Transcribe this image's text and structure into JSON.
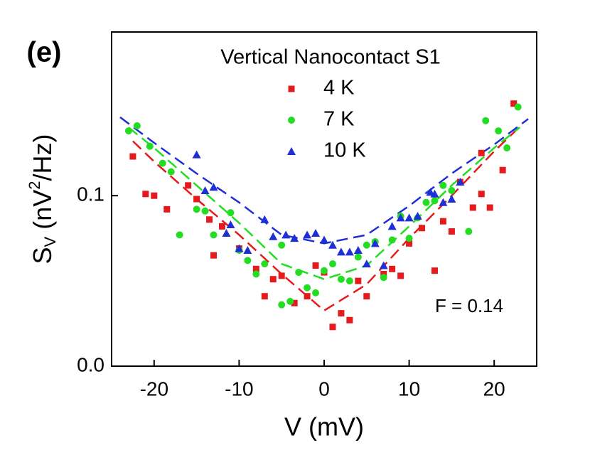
{
  "chart_data": {
    "type": "scatter",
    "panel_label": "(e)",
    "title": "Vertical Nanocontact S1",
    "annotation": "F = 0.14",
    "x_label": "V (mV)",
    "y_label": {
      "base": "S",
      "sub": "V",
      "mid": " (nV",
      "sup": "2",
      "end": "/Hz)"
    },
    "xlim": [
      -25,
      25
    ],
    "ylim": [
      0,
      0.196
    ],
    "xticks": [
      -20,
      -10,
      0,
      10,
      20
    ],
    "yticks": [
      {
        "value": 0,
        "label": "0.0"
      },
      0.1
    ],
    "series": [
      {
        "name": "4 K",
        "color": "#e41a1c",
        "marker": "square",
        "x": [
          -22.5,
          -21,
          -20,
          -18.5,
          -16,
          -15,
          -13.5,
          -12,
          -13,
          -10,
          -8,
          -7,
          -6,
          -5,
          -3.5,
          -2,
          -1,
          0,
          1,
          2,
          3,
          4,
          5,
          7,
          8,
          9,
          10,
          11.5,
          13,
          14,
          15,
          16,
          17.5,
          18.5,
          19.5,
          18.5,
          21,
          22.3
        ],
        "values": [
          0.123,
          0.101,
          0.1,
          0.092,
          0.106,
          0.098,
          0.086,
          0.082,
          0.065,
          0.069,
          0.057,
          0.041,
          0.051,
          0.053,
          0.037,
          0.041,
          0.059,
          0.055,
          0.023,
          0.031,
          0.027,
          0.05,
          0.041,
          0.054,
          0.057,
          0.053,
          0.072,
          0.081,
          0.056,
          0.085,
          0.079,
          0.108,
          0.093,
          0.101,
          0.093,
          0.125,
          0.115,
          0.154
        ]
      },
      {
        "name": "7 K",
        "color": "#22dd22",
        "marker": "circle",
        "x": [
          -23,
          -22,
          -20.5,
          -19,
          -18,
          -17,
          -15,
          -14,
          -13,
          -11,
          -10,
          -9,
          -8,
          -7,
          -5,
          -5,
          -4,
          -3,
          -2,
          -1,
          0,
          1,
          2,
          3,
          4,
          5,
          6,
          7,
          8,
          9,
          10,
          11,
          12,
          13,
          14,
          15,
          17,
          19,
          20.5,
          21.5,
          22.8
        ],
        "values": [
          0.138,
          0.141,
          0.129,
          0.119,
          0.114,
          0.077,
          0.092,
          0.091,
          0.077,
          0.09,
          0.068,
          0.062,
          0.054,
          0.06,
          0.071,
          0.036,
          0.038,
          0.055,
          0.046,
          0.043,
          0.056,
          0.06,
          0.051,
          0.05,
          0.064,
          0.071,
          0.073,
          0.052,
          0.074,
          0.088,
          0.075,
          0.087,
          0.096,
          0.097,
          0.106,
          0.103,
          0.079,
          0.144,
          0.138,
          0.128,
          0.152
        ]
      },
      {
        "name": "10 K",
        "color": "#1f2fd6",
        "marker": "triangle",
        "x": [
          -15,
          -14,
          -13,
          -11.5,
          -11,
          -10,
          -9,
          -7,
          -6,
          -4.5,
          -3.5,
          -2,
          -1,
          0,
          1,
          2,
          3,
          4,
          5,
          6,
          7,
          8,
          9,
          10,
          11,
          12.5,
          13,
          14,
          15,
          16
        ],
        "values": [
          0.124,
          0.103,
          0.105,
          0.078,
          0.083,
          0.069,
          0.068,
          0.086,
          0.076,
          0.077,
          0.075,
          0.077,
          0.078,
          0.074,
          0.071,
          0.067,
          0.067,
          0.068,
          0.06,
          0.072,
          0.059,
          0.082,
          0.087,
          0.087,
          0.088,
          0.102,
          0.101,
          0.096,
          0.098,
          0.108
        ]
      }
    ],
    "fits": [
      {
        "color": "#e41a1c",
        "x": [
          -22.5,
          -20,
          -15,
          -10,
          -5,
          0,
          5,
          10,
          15,
          20,
          22.5
        ],
        "values": [
          0.132,
          0.12,
          0.098,
          0.077,
          0.054,
          0.0326,
          0.048,
          0.075,
          0.1,
          0.126,
          0.138
        ]
      },
      {
        "color": "#22dd22",
        "x": [
          -23,
          -20,
          -15,
          -10,
          -5,
          0,
          5,
          10,
          15,
          20,
          23
        ],
        "values": [
          0.14,
          0.128,
          0.106,
          0.084,
          0.06,
          0.051,
          0.059,
          0.082,
          0.106,
          0.128,
          0.14
        ]
      },
      {
        "color": "#1f2fd6",
        "x": [
          -24,
          -20,
          -15,
          -10,
          -5,
          0,
          5,
          10,
          15,
          20,
          24
        ],
        "values": [
          0.146,
          0.131,
          0.113,
          0.096,
          0.077,
          0.072,
          0.077,
          0.094,
          0.113,
          0.13,
          0.145
        ]
      }
    ]
  }
}
